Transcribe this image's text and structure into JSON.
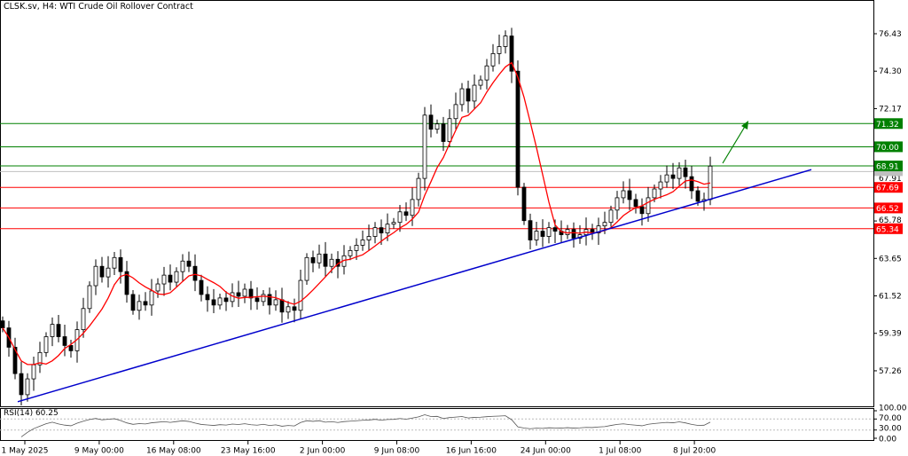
{
  "header": {
    "title": "CLSK.sv, H4:  WTI Crude Oil Rollover Contract"
  },
  "chart_data": {
    "type": "candlestick",
    "symbol": "CLSK.sv",
    "timeframe": "H4",
    "title": "WTI Crude Oil Rollover Contract",
    "ylim": [
      55.2,
      77.9
    ],
    "y_ticks": [
      "76.43",
      "74.30",
      "72.17",
      "67.91",
      "65.78",
      "63.65",
      "61.52",
      "59.39",
      "57.26"
    ],
    "x_ticks": [
      "1 May 2025",
      "9 May 00:00",
      "16 May 08:00",
      "23 May 16:00",
      "2 Jun 00:00",
      "9 Jun 08:00",
      "16 Jun 16:00",
      "24 Jun 00:00",
      "1 Jul 08:00",
      "8 Jul 20:00"
    ],
    "closes": [
      59.7,
      58.6,
      57.1,
      55.9,
      56.8,
      57.6,
      58.3,
      59.2,
      59.9,
      59.2,
      58.7,
      58.4,
      59.6,
      60.8,
      62.1,
      63.2,
      62.6,
      63.1,
      63.7,
      62.9,
      61.6,
      60.7,
      61.2,
      61.0,
      61.8,
      62.2,
      62.7,
      62.3,
      62.9,
      63.5,
      63.2,
      62.4,
      61.6,
      61.3,
      61.0,
      61.4,
      61.2,
      61.7,
      61.5,
      61.9,
      61.4,
      61.2,
      61.6,
      61.0,
      61.3,
      60.6,
      60.9,
      60.7,
      62.4,
      63.7,
      63.4,
      63.9,
      63.2,
      63.6,
      63.2,
      63.8,
      64.1,
      64.4,
      64.7,
      64.9,
      65.4,
      65.1,
      65.6,
      65.7,
      66.3,
      66.1,
      67.0,
      68.2,
      71.8,
      71.0,
      71.3,
      70.3,
      71.6,
      72.4,
      73.3,
      72.6,
      73.5,
      73.8,
      74.6,
      75.3,
      75.7,
      76.3,
      74.3,
      67.7,
      65.8,
      64.7,
      65.2,
      64.9,
      65.4,
      65.2,
      65.0,
      65.3,
      64.8,
      65.0,
      65.3,
      65.1,
      65.5,
      65.7,
      66.4,
      67.1,
      67.5,
      67.0,
      66.6,
      66.2,
      67.1,
      67.6,
      68.0,
      68.4,
      68.2,
      68.8,
      68.3,
      67.5,
      66.9,
      67.0,
      68.9
    ],
    "resistance_levels": [
      {
        "value": 71.32,
        "label": "71.32"
      },
      {
        "value": 70.0,
        "label": "70.00"
      },
      {
        "value": 68.91,
        "label": "68.91"
      }
    ],
    "support_levels": [
      {
        "value": 67.69,
        "label": "67.69"
      },
      {
        "value": 66.52,
        "label": "66.52"
      },
      {
        "value": 65.34,
        "label": "65.34"
      }
    ],
    "current_price": 68.59,
    "trendline": {
      "start_price": 55.5,
      "end_price": 68.7
    },
    "moving_average": {
      "color": "#ff0000"
    },
    "rsi": {
      "label": "RSI(14) 60.25",
      "period": 14,
      "value": 60.25,
      "ticks": [
        "100.00",
        "70.00",
        "30.00",
        "0.00"
      ]
    },
    "colors": {
      "resistance": "#008000",
      "support": "#ff0000",
      "trendline": "#0000cc",
      "candle": "#000000",
      "arrow": "#008000"
    }
  }
}
